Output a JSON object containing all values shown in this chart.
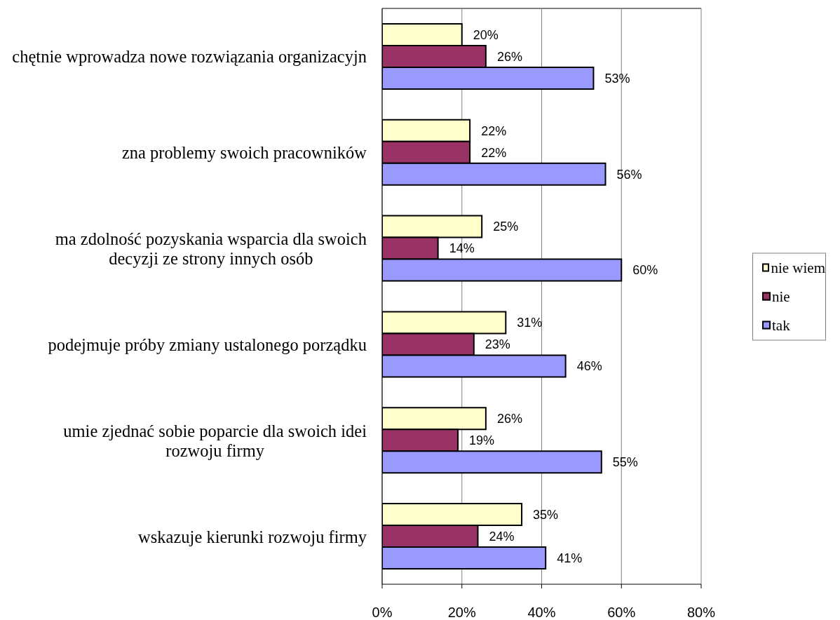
{
  "chart_data": {
    "type": "bar",
    "orientation": "horizontal",
    "categories": [
      "chętnie wprowadza nowe rozwiązania organizacyjn",
      "zna problemy swoich pracowników",
      "ma zdolność pozyskania wsparcia dla swoich decyzji ze strony innych osób",
      "podejmuje próby zmiany ustalonego porządku",
      "umie zjednać sobie poparcie dla swoich idei rozwoju firmy",
      "wskazuje kierunki rozwoju firmy"
    ],
    "series": [
      {
        "name": "nie wiem",
        "color": "#ffffcc",
        "values": [
          20,
          22,
          25,
          31,
          26,
          35
        ],
        "value_labels": [
          "20%",
          "22%",
          "25%",
          "31%",
          "26%",
          "35%"
        ]
      },
      {
        "name": "nie",
        "color": "#993366",
        "values": [
          26,
          22,
          14,
          23,
          19,
          24
        ],
        "value_labels": [
          "26%",
          "22%",
          "14%",
          "23%",
          "19%",
          "24%"
        ]
      },
      {
        "name": "tak",
        "color": "#9999ff",
        "values": [
          53,
          56,
          60,
          46,
          55,
          41
        ],
        "value_labels": [
          "53%",
          "56%",
          "60%",
          "46%",
          "55%",
          "41%"
        ]
      }
    ],
    "xlim": [
      0,
      80
    ],
    "xticks": [
      {
        "value": 0,
        "label": "0%"
      },
      {
        "value": 20,
        "label": "20%"
      },
      {
        "value": 40,
        "label": "40%"
      },
      {
        "value": 60,
        "label": "60%"
      },
      {
        "value": 80,
        "label": "80%"
      }
    ],
    "grid": "x",
    "legend": "right"
  }
}
